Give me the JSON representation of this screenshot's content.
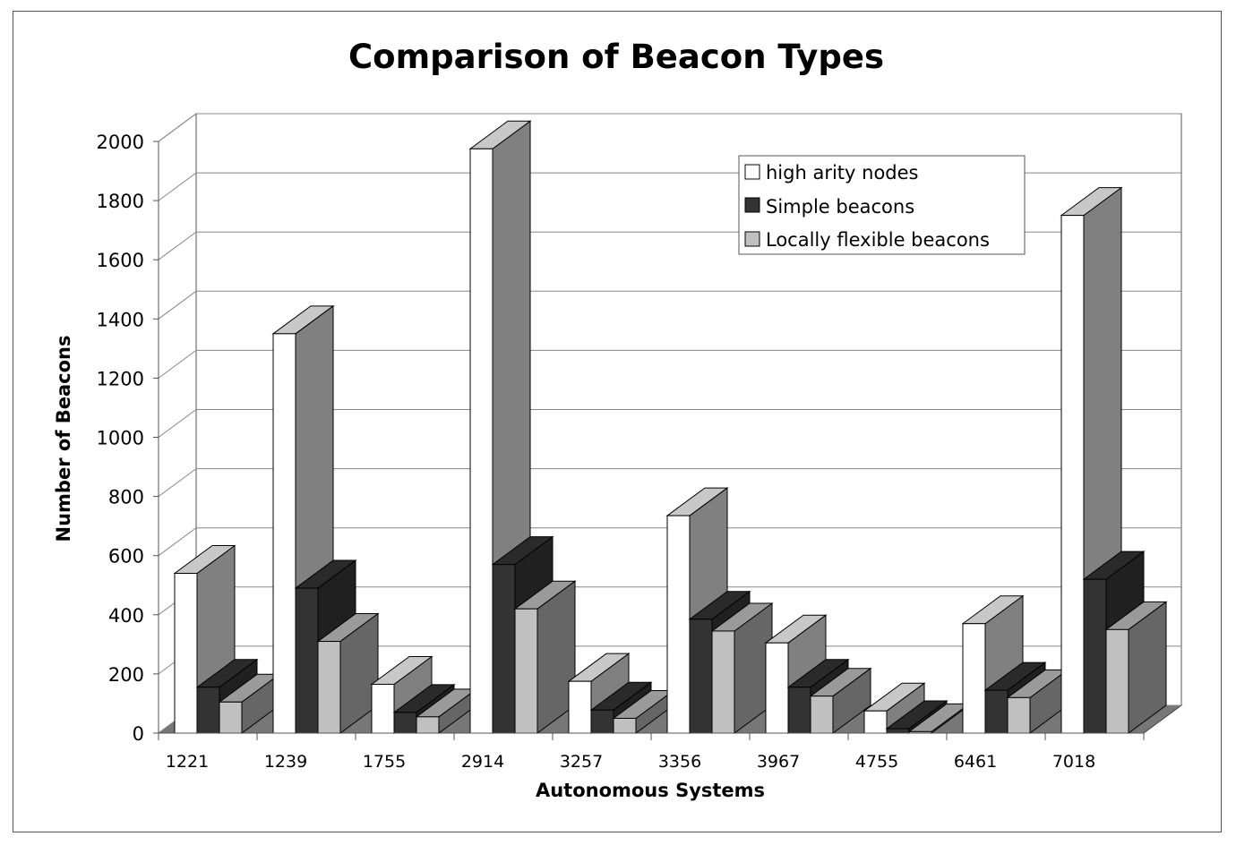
{
  "chart_data": {
    "type": "bar",
    "title": "Comparison of Beacon Types",
    "xlabel": "Autonomous Systems",
    "ylabel": "Number of Beacons",
    "ylim": [
      0,
      2000
    ],
    "yticks": [
      0,
      200,
      400,
      600,
      800,
      1000,
      1200,
      1400,
      1600,
      1800,
      2000
    ],
    "categories": [
      "1221",
      "1239",
      "1755",
      "2914",
      "3257",
      "3356",
      "3967",
      "4755",
      "6461",
      "7018"
    ],
    "series": [
      {
        "name": "high arity nodes",
        "values": [
          540,
          1350,
          165,
          1975,
          175,
          735,
          305,
          75,
          370,
          1750
        ],
        "color": "#ffffff"
      },
      {
        "name": "Simple beacons",
        "values": [
          155,
          490,
          70,
          570,
          78,
          385,
          155,
          15,
          145,
          520
        ],
        "color": "#333333"
      },
      {
        "name": "Locally flexible beacons",
        "values": [
          105,
          310,
          55,
          420,
          50,
          345,
          125,
          5,
          120,
          350
        ],
        "color": "#c0c0c0"
      }
    ],
    "grid": true,
    "legend_position": "top-right",
    "style": "3d-clustered-column"
  }
}
